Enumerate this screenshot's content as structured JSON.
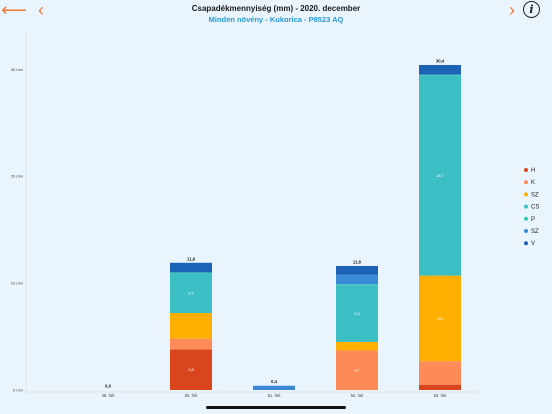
{
  "header": {
    "back_glyph": "⟵",
    "prev_glyph": "‹",
    "next_glyph": "›",
    "info_glyph": "i",
    "title": "Csapadékmennyiség (mm) - 2020. december",
    "subtitle": "Minden növény - Kukorica - P8523 AQ"
  },
  "icons": {
    "back": "arrow-left-icon",
    "prev": "chevron-left-icon",
    "next": "chevron-right-icon",
    "info": "info-icon"
  },
  "chart_data": {
    "type": "bar",
    "stacked": true,
    "categories": [
      "49. hét",
      "50. hét",
      "51. hét",
      "52. hét",
      "53. hét"
    ],
    "ylim": [
      0,
      31
    ],
    "y_ticks": [
      0,
      10,
      20,
      30
    ],
    "y_tick_labels": [
      "0 mm",
      "10 mm",
      "20 mm",
      "30 mm"
    ],
    "grid": false,
    "legend_position": "right",
    "totals": [
      0.0,
      11.9,
      0.4,
      11.6,
      30.4
    ],
    "total_labels": [
      "0,0",
      "11,9",
      "0,4",
      "11,6",
      "30,4"
    ],
    "series": [
      {
        "name": "H",
        "color": "#d9461e",
        "values": [
          0,
          3.8,
          0,
          0,
          0.5
        ],
        "labels": [
          "",
          "3,8",
          "",
          "",
          ""
        ]
      },
      {
        "name": "K",
        "color": "#fc8b58",
        "values": [
          0,
          1.0,
          0,
          3.7,
          2.2
        ],
        "labels": [
          "",
          "",
          "",
          "3,7",
          ""
        ]
      },
      {
        "name": "SZ",
        "color": "#ffaf00",
        "values": [
          0,
          2.4,
          0,
          0.8,
          8.0
        ],
        "labels": [
          "",
          "",
          "",
          "",
          "8,0"
        ]
      },
      {
        "name": "CS",
        "color": "#3bbfc4",
        "values": [
          0,
          3.7,
          0,
          5.3,
          18.7
        ],
        "labels": [
          "",
          "3,7",
          "",
          "5,3",
          "18,7"
        ]
      },
      {
        "name": "P",
        "color": "#37c6b4",
        "values": [
          0,
          0.1,
          0,
          0.1,
          0.1
        ],
        "labels": [
          "",
          "",
          "",
          "",
          ""
        ]
      },
      {
        "name": "SZ",
        "color": "#3a8ad6",
        "values": [
          0,
          0,
          0.4,
          0.9,
          0
        ],
        "labels": [
          "",
          "",
          "",
          "",
          ""
        ]
      },
      {
        "name": "V",
        "color": "#1c63b8",
        "values": [
          0,
          0.9,
          0,
          0.8,
          0.9
        ],
        "labels": [
          "",
          "",
          "",
          "",
          ""
        ]
      }
    ]
  }
}
